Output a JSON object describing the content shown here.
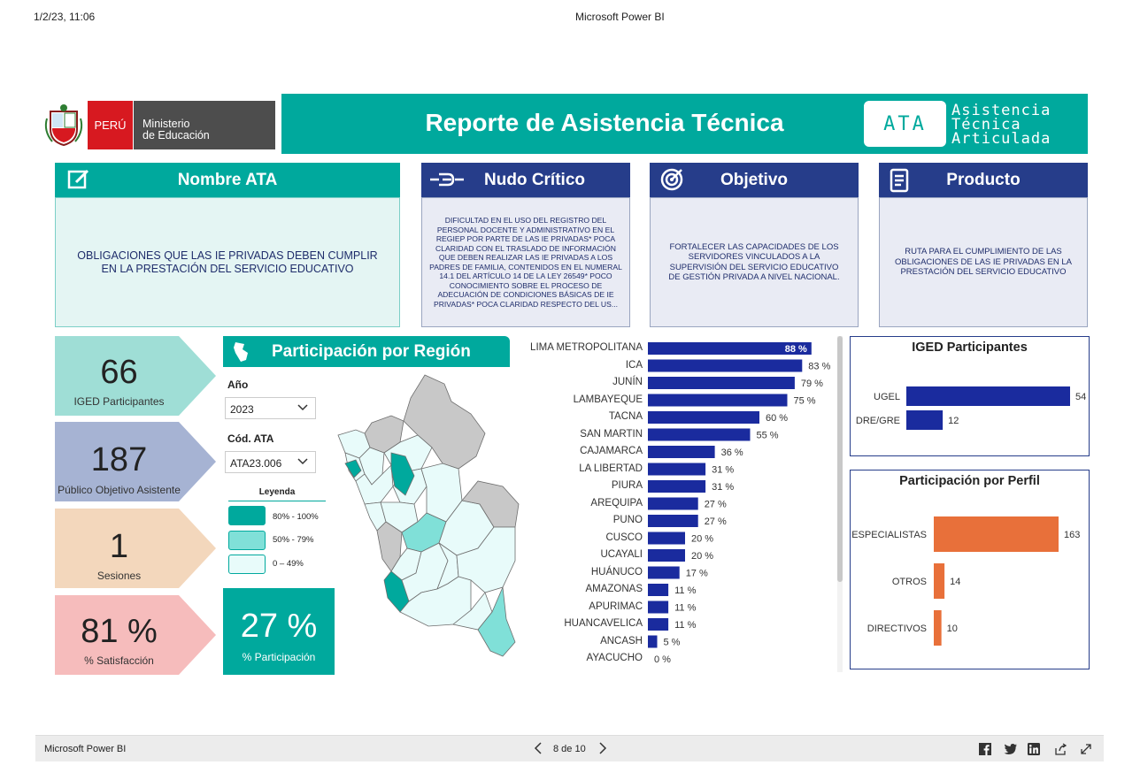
{
  "print_header": {
    "datetime": "1/2/23, 11:06",
    "app": "Microsoft Power BI"
  },
  "header": {
    "peru_label": "PERÚ",
    "ministry_line1": "Ministerio",
    "ministry_line2": "de Educación",
    "title": "Reporte de Asistencia Técnica",
    "ata_short": "ATA",
    "ata_long_1": "Asistencia",
    "ata_long_2": "Técnica",
    "ata_long_3": "Articulada"
  },
  "cards": {
    "nombre": {
      "title": "Nombre ATA",
      "body": "OBLIGACIONES QUE LAS IE PRIVADAS DEBEN CUMPLIR EN LA PRESTACIÓN DEL SERVICIO EDUCATIVO"
    },
    "nudo": {
      "title": "Nudo Crítico",
      "body": "DIFICULTAD EN EL USO DEL REGISTRO DEL PERSONAL DOCENTE Y ADMINISTRATIVO EN EL REGIEP POR PARTE DE LAS IE PRIVADAS* POCA CLARIDAD CON EL TRASLADO DE INFORMACIÓN QUE DEBEN REALIZAR LAS IE PRIVADAS A LOS PADRES DE FAMILIA, CONTENIDOS EN EL NUMERAL 14.1 DEL ARTÍCULO 14 DE LA LEY 26549* POCO CONOCIMIENTO SOBRE EL PROCESO DE ADECUACIÓN DE CONDICIONES BÁSICAS DE IE PRIVADAS* POCA CLARIDAD RESPECTO DEL US..."
    },
    "objetivo": {
      "title": "Objetivo",
      "body": "FORTALECER LAS CAPACIDADES DE LOS SERVIDORES VINCULADOS A LA SUPERVISIÓN DEL SERVICIO EDUCATIVO DE GESTIÓN PRIVADA A NIVEL NACIONAL."
    },
    "producto": {
      "title": "Producto",
      "body": "RUTA PARA EL CUMPLIMIENTO DE LAS OBLIGACIONES DE LAS IE PRIVADAS EN LA PRESTACIÓN DEL SERVICIO EDUCATIVO"
    }
  },
  "kpis": [
    {
      "value": "66",
      "label": "IGED Participantes",
      "color": "#9fded6"
    },
    {
      "value": "187",
      "label": "Público Objetivo Asistente",
      "color": "#a6b3d3"
    },
    {
      "value": "1",
      "label": "Sesiones",
      "color": "#f3d7bc"
    },
    {
      "value": "81 %",
      "label": "% Satisfacción",
      "color": "#f6bcbc"
    }
  ],
  "region_panel": {
    "title": "Participación por Región",
    "year_label": "Año",
    "year_value": "2023",
    "code_label": "Cód. ATA",
    "code_value": "ATA23.006",
    "legend_title": "Leyenda",
    "legend": [
      {
        "label": "80% - 100%",
        "color": "#00a99d"
      },
      {
        "label": "50% - 79%",
        "color": "#80e0d8"
      },
      {
        "label": "0 – 49%",
        "color": "#e8fbfa"
      }
    ],
    "participation_value": "27 %",
    "participation_label": "% Participación"
  },
  "chart_data": [
    {
      "type": "bar",
      "orientation": "horizontal",
      "title": "",
      "categories": [
        "LIMA METROPOLITANA",
        "ICA",
        "JUNÍN",
        "LAMBAYEQUE",
        "TACNA",
        "SAN MARTIN",
        "CAJAMARCA",
        "LA LIBERTAD",
        "PIURA",
        "AREQUIPA",
        "PUNO",
        "CUSCO",
        "UCAYALI",
        "HUÁNUCO",
        "AMAZONAS",
        "APURIMAC",
        "HUANCAVELICA",
        "ANCASH",
        "AYACUCHO"
      ],
      "values": [
        88,
        83,
        79,
        75,
        60,
        55,
        36,
        31,
        31,
        27,
        27,
        20,
        20,
        17,
        11,
        11,
        11,
        5,
        0
      ],
      "labels": [
        "88 %",
        "83 %",
        "79 %",
        "75 %",
        "60 %",
        "55 %",
        "36 %",
        "31 %",
        "31 %",
        "27 %",
        "27 %",
        "20 %",
        "20 %",
        "17 %",
        "11 %",
        "11 %",
        "11 %",
        "5 %",
        "0 %"
      ],
      "color": "#1a2b9e",
      "xlim": [
        0,
        100
      ]
    },
    {
      "type": "bar",
      "orientation": "horizontal",
      "title": "IGED Participantes",
      "categories": [
        "UGEL",
        "DRE/GRE"
      ],
      "values": [
        54,
        12
      ],
      "color": "#1a2b9e"
    },
    {
      "type": "bar",
      "orientation": "horizontal",
      "title": "Participación por Perfil",
      "categories": [
        "ESPECIALISTAS",
        "OTROS",
        "DIRECTIVOS"
      ],
      "values": [
        163,
        14,
        10
      ],
      "color": "#e8703a"
    }
  ],
  "footer": {
    "app": "Microsoft Power BI",
    "page": "8 de 10"
  }
}
